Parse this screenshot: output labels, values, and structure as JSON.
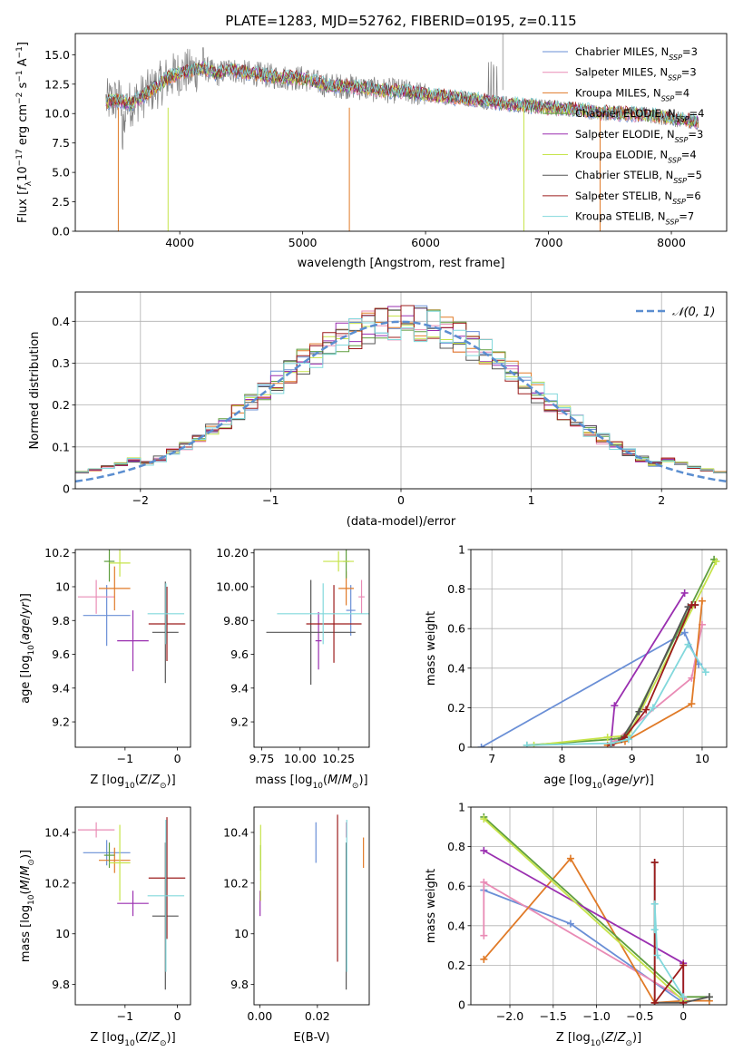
{
  "figure": {
    "title": "PLATE=1283, MJD=52762, FIBERID=0195, z=0.115"
  },
  "model_colors": {
    "Chabrier MILES": "#6a8fd6",
    "Salpeter MILES": "#e98bb5",
    "Kroupa MILES": "#e07a27",
    "Chabrier ELODIE": "#5f9e3e",
    "Salpeter ELODIE": "#9a2fb0",
    "Kroupa ELODIE": "#c6e44a",
    "Chabrier STELIB": "#555555",
    "Salpeter STELIB": "#9c1c1c",
    "Kroupa STELIB": "#82d8dc"
  },
  "legend_labels": {
    "spectrum": [
      {
        "name": "Chabrier MILES",
        "nssp": "3"
      },
      {
        "name": "Salpeter MILES",
        "nssp": "3"
      },
      {
        "name": "Kroupa MILES",
        "nssp": "4"
      },
      {
        "name": "Chabrier ELODIE",
        "nssp": "4"
      },
      {
        "name": "Salpeter ELODIE",
        "nssp": "3"
      },
      {
        "name": "Kroupa ELODIE",
        "nssp": "4"
      },
      {
        "name": "Chabrier STELIB",
        "nssp": "5"
      },
      {
        "name": "Salpeter STELIB",
        "nssp": "6"
      },
      {
        "name": "Kroupa STELIB",
        "nssp": "7"
      }
    ],
    "normal": "𝒩(0, 1)"
  },
  "chart_data": [
    {
      "id": "spectrum",
      "type": "line",
      "xlabel": "wavelength [Angstrom, rest frame]",
      "ylabel": "Flux [f_λ 10^-17 erg cm^-2 s^-1 A^-1]",
      "xlim": [
        3150,
        8450
      ],
      "ylim": [
        0,
        16.8
      ],
      "xticks": [
        4000,
        5000,
        6000,
        7000,
        8000
      ],
      "yticks": [
        0.0,
        2.5,
        5.0,
        7.5,
        10.0,
        12.5,
        15.0
      ],
      "data_color": "#7f7f7f",
      "spectrum_wavelength_range": [
        3400,
        8220
      ],
      "model_continuum": [
        [
          3400,
          11.0
        ],
        [
          3500,
          11.2
        ],
        [
          3600,
          10.8
        ],
        [
          3700,
          11.5
        ],
        [
          3800,
          12.2
        ],
        [
          3900,
          13.0
        ],
        [
          4000,
          13.5
        ],
        [
          4100,
          13.6
        ],
        [
          4200,
          13.9
        ],
        [
          4300,
          13.3
        ],
        [
          4400,
          13.8
        ],
        [
          4500,
          13.5
        ],
        [
          4600,
          13.4
        ],
        [
          4800,
          13.1
        ],
        [
          5000,
          13.0
        ],
        [
          5200,
          12.4
        ],
        [
          5400,
          12.3
        ],
        [
          5600,
          12.0
        ],
        [
          5800,
          11.9
        ],
        [
          6000,
          11.6
        ],
        [
          6200,
          11.4
        ],
        [
          6400,
          11.2
        ],
        [
          6600,
          10.9
        ],
        [
          6800,
          10.7
        ],
        [
          7000,
          10.5
        ],
        [
          7200,
          10.4
        ],
        [
          7400,
          10.1
        ],
        [
          7600,
          10.0
        ],
        [
          7800,
          9.9
        ],
        [
          8000,
          9.6
        ],
        [
          8220,
          9.3
        ]
      ]
    },
    {
      "id": "residuals",
      "type": "step",
      "xlabel": "(data-model)/error",
      "ylabel": "Normed distribution",
      "xlim": [
        -2.5,
        2.5
      ],
      "ylim": [
        0,
        0.47
      ],
      "xticks": [
        -2,
        -1,
        0,
        1,
        2
      ],
      "yticks": [
        0.0,
        0.1,
        0.2,
        0.3,
        0.4
      ],
      "grid": true,
      "bin_edges": [
        -2.5,
        -2.4,
        -2.3,
        -2.2,
        -2.1,
        -2.0,
        -1.9,
        -1.8,
        -1.7,
        -1.6,
        -1.5,
        -1.4,
        -1.3,
        -1.2,
        -1.1,
        -1.0,
        -0.9,
        -0.8,
        -0.7,
        -0.6,
        -0.5,
        -0.4,
        -0.3,
        -0.2,
        -0.1,
        0.0,
        0.1,
        0.2,
        0.3,
        0.4,
        0.5,
        0.6,
        0.7,
        0.8,
        0.9,
        1.0,
        1.1,
        1.2,
        1.3,
        1.4,
        1.5,
        1.6,
        1.7,
        1.8,
        1.9,
        2.0,
        2.1,
        2.2,
        2.3,
        2.4,
        2.5
      ],
      "normal_curve": {
        "mu": 0,
        "sigma": 1,
        "color": "#5b8ed0"
      }
    },
    {
      "id": "age-vs-Z",
      "type": "errorbar",
      "xlabel": "Z [log10(Z/Z⊙)]",
      "ylabel": "age [log10(age/yr)]",
      "xlim": [
        -1.95,
        0.25
      ],
      "ylim": [
        9.05,
        10.22
      ],
      "xticks": [
        -1,
        0
      ],
      "yticks": [
        9.2,
        9.4,
        9.6,
        9.8,
        10.0,
        10.2
      ],
      "points": [
        {
          "model": "Chabrier MILES",
          "x": -1.35,
          "xerr": 0.45,
          "y": 9.83,
          "yerr": 0.18
        },
        {
          "model": "Salpeter MILES",
          "x": -1.55,
          "xerr": 0.35,
          "y": 9.94,
          "yerr": 0.1
        },
        {
          "model": "Kroupa MILES",
          "x": -1.2,
          "xerr": 0.3,
          "y": 9.99,
          "yerr": 0.13
        },
        {
          "model": "Chabrier ELODIE",
          "x": -1.3,
          "xerr": 0.1,
          "y": 10.15,
          "yerr": 0.12
        },
        {
          "model": "Salpeter ELODIE",
          "x": -0.85,
          "xerr": 0.3,
          "y": 9.68,
          "yerr": 0.18
        },
        {
          "model": "Kroupa ELODIE",
          "x": -1.1,
          "xerr": 0.2,
          "y": 10.14,
          "yerr": 0.08
        },
        {
          "model": "Chabrier STELIB",
          "x": -0.23,
          "xerr": 0.25,
          "y": 9.73,
          "yerr": 0.3
        },
        {
          "model": "Salpeter STELIB",
          "x": -0.2,
          "xerr": 0.35,
          "y": 9.78,
          "yerr": 0.22
        },
        {
          "model": "Kroupa STELIB",
          "x": -0.22,
          "xerr": 0.35,
          "y": 9.84,
          "yerr": 0.18
        }
      ]
    },
    {
      "id": "age-vs-mass",
      "type": "errorbar",
      "xlabel": "mass [log10(M/M⊙)]",
      "ylabel": "",
      "xlim": [
        9.7,
        10.45
      ],
      "ylim": [
        9.05,
        10.22
      ],
      "xticks": [
        9.75,
        10.0,
        10.25
      ],
      "yticks": [
        9.2,
        9.4,
        9.6,
        9.8,
        10.0,
        10.2
      ],
      "points": [
        {
          "model": "Chabrier MILES",
          "x": 10.33,
          "xerr": 0.03,
          "y": 9.86,
          "yerr": 0.15
        },
        {
          "model": "Salpeter MILES",
          "x": 10.4,
          "xerr": 0.02,
          "y": 9.94,
          "yerr": 0.1
        },
        {
          "model": "Kroupa MILES",
          "x": 10.3,
          "xerr": 0.05,
          "y": 9.99,
          "yerr": 0.1
        },
        {
          "model": "Chabrier ELODIE",
          "x": 10.3,
          "xerr": 0.02,
          "y": 10.15,
          "yerr": 0.1
        },
        {
          "model": "Salpeter ELODIE",
          "x": 10.12,
          "xerr": 0.02,
          "y": 9.68,
          "yerr": 0.17
        },
        {
          "model": "Kroupa ELODIE",
          "x": 10.25,
          "xerr": 0.1,
          "y": 10.15,
          "yerr": 0.06
        },
        {
          "model": "Chabrier STELIB",
          "x": 10.07,
          "xerr": 0.29,
          "y": 9.73,
          "yerr": 0.31
        },
        {
          "model": "Salpeter STELIB",
          "x": 10.22,
          "xerr": 0.18,
          "y": 9.78,
          "yerr": 0.23
        },
        {
          "model": "Kroupa STELIB",
          "x": 10.15,
          "xerr": 0.3,
          "y": 9.84,
          "yerr": 0.18
        }
      ]
    },
    {
      "id": "mass-weight-vs-age",
      "type": "line",
      "xlabel": "age [log10(age/yr)]",
      "ylabel": "mass weight",
      "xlim": [
        6.7,
        10.35
      ],
      "ylim": [
        0,
        1.0
      ],
      "xticks": [
        7,
        8,
        9,
        10
      ],
      "yticks": [
        0.0,
        0.2,
        0.4,
        0.6,
        0.8,
        1.0
      ],
      "grid": true,
      "series": [
        {
          "model": "Chabrier MILES",
          "x": [
            6.85,
            9.75,
            9.95
          ],
          "y": [
            0.0,
            0.58,
            0.42
          ]
        },
        {
          "model": "Salpeter MILES",
          "x": [
            8.75,
            9.85,
            10.0
          ],
          "y": [
            0.03,
            0.35,
            0.62
          ]
        },
        {
          "model": "Kroupa MILES",
          "x": [
            8.65,
            8.9,
            9.85,
            10.0
          ],
          "y": [
            0.01,
            0.03,
            0.22,
            0.74
          ]
        },
        {
          "model": "Chabrier ELODIE",
          "x": [
            7.5,
            8.7,
            8.9,
            10.17
          ],
          "y": [
            0.01,
            0.04,
            0.05,
            0.95
          ]
        },
        {
          "model": "Salpeter ELODIE",
          "x": [
            8.7,
            8.75,
            9.75
          ],
          "y": [
            0.02,
            0.21,
            0.78
          ]
        },
        {
          "model": "Kroupa ELODIE",
          "x": [
            7.6,
            8.65,
            8.95,
            10.2
          ],
          "y": [
            0.01,
            0.05,
            0.06,
            0.94
          ]
        },
        {
          "model": "Chabrier STELIB",
          "x": [
            8.7,
            8.85,
            9.1,
            9.8,
            9.9
          ],
          "y": [
            0.01,
            0.04,
            0.18,
            0.71,
            0.72
          ]
        },
        {
          "model": "Salpeter STELIB",
          "x": [
            8.7,
            8.9,
            9.2,
            9.85,
            9.9
          ],
          "y": [
            0.01,
            0.05,
            0.19,
            0.72,
            0.72
          ]
        },
        {
          "model": "Kroupa STELIB",
          "x": [
            7.5,
            8.7,
            8.95,
            9.3,
            9.8,
            10.05
          ],
          "y": [
            0.01,
            0.02,
            0.04,
            0.2,
            0.52,
            0.38
          ]
        }
      ]
    },
    {
      "id": "mass-vs-Z",
      "type": "errorbar",
      "xlabel": "Z [log10(Z/Z⊙)]",
      "ylabel": "mass [log10(M/M⊙)]",
      "xlim": [
        -1.95,
        0.25
      ],
      "ylim": [
        9.72,
        10.5
      ],
      "xticks": [
        -1,
        0
      ],
      "yticks": [
        9.8,
        10.0,
        10.2,
        10.4
      ],
      "points": [
        {
          "model": "Chabrier MILES",
          "x": -1.35,
          "xerr": 0.45,
          "y": 10.32,
          "yerr": 0.05
        },
        {
          "model": "Salpeter MILES",
          "x": -1.55,
          "xerr": 0.35,
          "y": 10.41,
          "yerr": 0.03
        },
        {
          "model": "Kroupa MILES",
          "x": -1.2,
          "xerr": 0.3,
          "y": 10.29,
          "yerr": 0.05
        },
        {
          "model": "Chabrier ELODIE",
          "x": -1.3,
          "xerr": 0.1,
          "y": 10.31,
          "yerr": 0.05
        },
        {
          "model": "Salpeter ELODIE",
          "x": -0.85,
          "xerr": 0.3,
          "y": 10.12,
          "yerr": 0.05
        },
        {
          "model": "Kroupa ELODIE",
          "x": -1.1,
          "xerr": 0.2,
          "y": 10.28,
          "yerr": 0.15
        },
        {
          "model": "Chabrier STELIB",
          "x": -0.23,
          "xerr": 0.25,
          "y": 10.07,
          "yerr": 0.29
        },
        {
          "model": "Salpeter STELIB",
          "x": -0.2,
          "xerr": 0.35,
          "y": 10.22,
          "yerr": 0.24
        },
        {
          "model": "Kroupa STELIB",
          "x": -0.22,
          "xerr": 0.35,
          "y": 10.15,
          "yerr": 0.3
        }
      ]
    },
    {
      "id": "mass-vs-ebv",
      "type": "errorbar",
      "xlabel": "E(B-V)",
      "ylabel": "",
      "xlim": [
        -0.002,
        0.038
      ],
      "ylim": [
        9.72,
        10.5
      ],
      "xticks": [
        0.0,
        0.02
      ],
      "yticks": [
        9.8,
        10.0,
        10.2,
        10.4
      ],
      "points": [
        {
          "model": "Chabrier MILES",
          "x": 0.0195,
          "y": 10.36,
          "yerr": 0.08
        },
        {
          "model": "Salpeter MILES",
          "x": 0.03,
          "y": 10.41,
          "yerr": 0.03
        },
        {
          "model": "Kroupa MILES",
          "x": 0.036,
          "y": 10.32,
          "yerr": 0.06
        },
        {
          "model": "Chabrier ELODIE",
          "x": 0.0003,
          "y": 10.3,
          "yerr": 0.05
        },
        {
          "model": "Salpeter ELODIE",
          "x": 0.0001,
          "y": 10.12,
          "yerr": 0.05
        },
        {
          "model": "Kroupa ELODIE",
          "x": 0.0003,
          "y": 10.28,
          "yerr": 0.15
        },
        {
          "model": "Chabrier STELIB",
          "x": 0.03,
          "y": 10.07,
          "yerr": 0.29
        },
        {
          "model": "Salpeter STELIB",
          "x": 0.027,
          "y": 10.18,
          "yerr": 0.29
        },
        {
          "model": "Kroupa STELIB",
          "x": 0.0302,
          "y": 10.15,
          "yerr": 0.3
        }
      ]
    },
    {
      "id": "mass-weight-vs-Z",
      "type": "line",
      "xlabel": "Z [log10(Z/Z⊙)]",
      "ylabel": "mass weight",
      "xlim": [
        -2.45,
        0.5
      ],
      "ylim": [
        0,
        1.0
      ],
      "xticks": [
        -2.0,
        -1.5,
        -1.0,
        -0.5,
        0.0
      ],
      "yticks": [
        0.0,
        0.2,
        0.4,
        0.6,
        0.8,
        1.0
      ],
      "grid": true,
      "series": [
        {
          "model": "Chabrier MILES",
          "x": [
            -2.3,
            -1.3,
            0.0
          ],
          "y": [
            0.58,
            0.41,
            0.01
          ]
        },
        {
          "model": "Salpeter MILES",
          "x": [
            -2.3,
            -2.3,
            0.0
          ],
          "y": [
            0.35,
            0.62,
            0.03
          ]
        },
        {
          "model": "Kroupa MILES",
          "x": [
            -2.3,
            -1.3,
            -0.33,
            0.0,
            0.3
          ],
          "y": [
            0.23,
            0.74,
            0.01,
            0.02,
            0.02
          ]
        },
        {
          "model": "Chabrier ELODIE",
          "x": [
            -2.3,
            0.0,
            0.3
          ],
          "y": [
            0.95,
            0.04,
            0.04
          ]
        },
        {
          "model": "Salpeter ELODIE",
          "x": [
            -2.3,
            0.0,
            0.0
          ],
          "y": [
            0.78,
            0.21,
            0.01
          ]
        },
        {
          "model": "Kroupa ELODIE",
          "x": [
            -2.3,
            0.0
          ],
          "y": [
            0.94,
            0.02
          ]
        },
        {
          "model": "Chabrier STELIB",
          "x": [
            -0.33,
            -0.33,
            0.0,
            0.3
          ],
          "y": [
            0.72,
            0.01,
            0.01,
            0.04
          ]
        },
        {
          "model": "Salpeter STELIB",
          "x": [
            -0.33,
            -0.33,
            0.0,
            0.0
          ],
          "y": [
            0.72,
            0.01,
            0.2,
            0.01
          ]
        },
        {
          "model": "Kroupa STELIB",
          "x": [
            -0.33,
            -0.33,
            -0.3,
            0.0
          ],
          "y": [
            0.38,
            0.51,
            0.25,
            0.04
          ]
        }
      ]
    }
  ]
}
